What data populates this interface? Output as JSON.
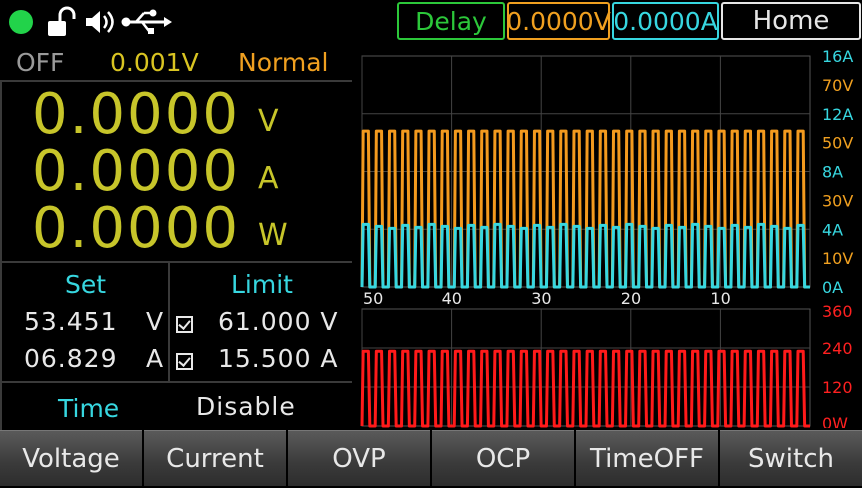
{
  "status_icons": [
    {
      "name": "power-dot-icon",
      "color": "#22d34a"
    },
    {
      "name": "unlock-icon"
    },
    {
      "name": "speaker-icon"
    },
    {
      "name": "usb-icon"
    }
  ],
  "header": {
    "delay_label": "Delay",
    "voltage_display": "0.0000V",
    "current_display": "0.0000A",
    "home_label": "Home"
  },
  "readout": {
    "output_state": "OFF",
    "setting_value": "0.001V",
    "mode": "Normal",
    "voltage": "0.0000",
    "voltage_unit": "V",
    "current": "0.0000",
    "current_unit": "A",
    "power": "0.0000",
    "power_unit": "W"
  },
  "settings": {
    "set_label": "Set",
    "limit_label": "Limit",
    "set_voltage": "53.451",
    "set_voltage_unit": "V",
    "set_current": "06.829",
    "set_current_unit": "A",
    "limit_voltage": "61.000 V",
    "limit_current": "15.500 A",
    "limit_voltage_checked": true,
    "limit_current_checked": true,
    "time_label": "Time",
    "time_value": "Disable"
  },
  "colors": {
    "voltage_trace": "#f39a1e",
    "current_trace": "#37d7e0",
    "power_trace": "#ff1a1a",
    "accent_yellow": "#c7c52a"
  },
  "chart_data": [
    {
      "type": "line",
      "x_tick_labels": [
        "50",
        "40",
        "30",
        "20",
        "10"
      ],
      "x_ticks": [
        50,
        40,
        30,
        20,
        10
      ],
      "xlim": [
        50,
        0
      ],
      "y_left_tick_labels_current": [
        "16A",
        "12A",
        "8A",
        "4A",
        "0A"
      ],
      "y_left_tick_labels_voltage": [
        "70V",
        "50V",
        "30V",
        "10V"
      ],
      "ylim_current": [
        0,
        16
      ],
      "ylim_voltage": [
        0,
        80
      ],
      "grid": true,
      "series": [
        {
          "axis": "voltage",
          "color": "#f39a1e",
          "low": 0,
          "high": 54,
          "pulses": 34
        },
        {
          "axis": "current",
          "color": "#37d7e0",
          "low": 0,
          "high": 4.2,
          "pulses": 34
        }
      ]
    },
    {
      "type": "line",
      "y_tick_labels": [
        "360",
        "240",
        "120",
        "0W"
      ],
      "ylim": [
        0,
        360
      ],
      "grid": true,
      "series": [
        {
          "axis": "power",
          "color": "#ff1a1a",
          "low": 0,
          "high": 230,
          "pulses": 34
        }
      ]
    }
  ],
  "softkeys": [
    "Voltage",
    "Current",
    "OVP",
    "OCP",
    "TimeOFF",
    "Switch"
  ]
}
